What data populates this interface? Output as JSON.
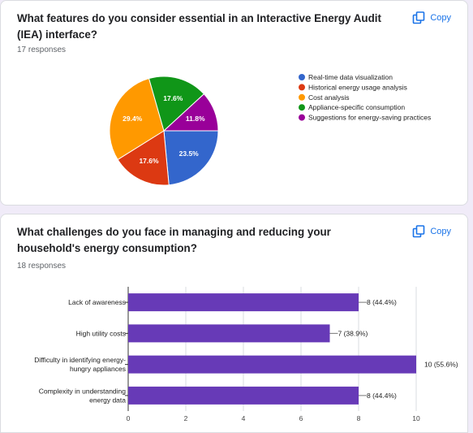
{
  "colors": {
    "page_bg": "#f0ebf8",
    "accent": "#1a73e8",
    "bar": "#673ab7",
    "pie": [
      "#3366cc",
      "#dc3912",
      "#ff9900",
      "#109618",
      "#990099"
    ]
  },
  "card1": {
    "title": "What features do you consider essential in an Interactive Energy Audit (IEA) interface?",
    "responses": "17 responses",
    "copy_label": "Copy",
    "copy_icon": "copy-icon"
  },
  "card2": {
    "title": "What challenges do you face in managing and reducing your household's energy consumption?",
    "responses": "18 responses",
    "copy_label": "Copy",
    "copy_icon": "copy-icon"
  },
  "chart_data": [
    {
      "type": "pie",
      "labels": [
        "Real-time data visualization",
        "Historical energy usage analysis",
        "Cost analysis",
        "Appliance-specific consumption",
        "Suggestions for energy-saving practices"
      ],
      "values": [
        23.5,
        17.6,
        29.4,
        17.6,
        11.8
      ],
      "data_labels": [
        "23.5%",
        "17.6%",
        "29.4%",
        "17.6%",
        "11.8%"
      ],
      "legend_position": "right"
    },
    {
      "type": "bar",
      "orientation": "horizontal",
      "categories": [
        "Lack of awareness",
        "High utility costs",
        "Difficulty in identifying energy-hungry appliances",
        "Complexity in understanding energy data"
      ],
      "category_lines": [
        [
          "Lack of awareness"
        ],
        [
          "High utility costs"
        ],
        [
          "Difficulty in identifying energy-",
          "hungry appliances"
        ],
        [
          "Complexity in understanding",
          "energy data"
        ]
      ],
      "values": [
        8,
        7,
        10,
        8
      ],
      "data_labels": [
        "8 (44.4%)",
        "7 (38.9%)",
        "10 (55.6%)",
        "8 (44.4%)"
      ],
      "xlim": [
        0,
        10
      ],
      "xticks": [
        "0",
        "2",
        "4",
        "6",
        "8",
        "10"
      ],
      "grid": true
    }
  ]
}
